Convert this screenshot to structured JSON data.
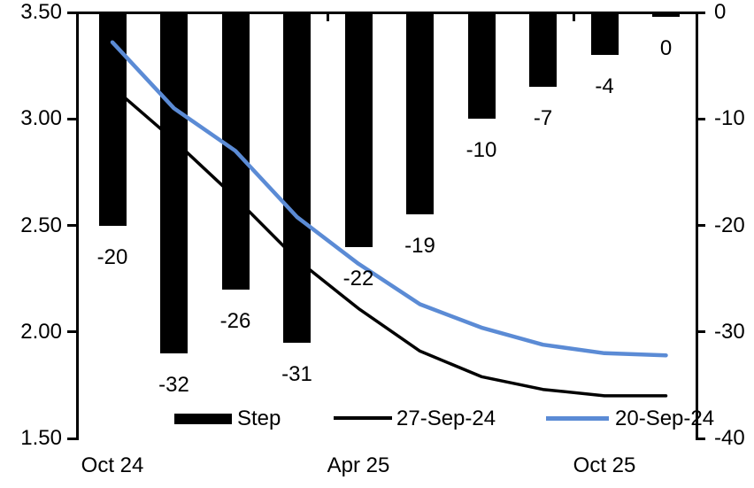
{
  "chart_data": {
    "type": "bar+line",
    "title": "",
    "n_categories": 10,
    "left_axis": {
      "min": 1.5,
      "max": 3.5,
      "tick_labels": [
        "3.50",
        "3.00",
        "2.50",
        "2.00",
        "1.50"
      ]
    },
    "right_axis": {
      "min": -40,
      "max": 0,
      "tick_labels": [
        "0",
        "-10",
        "-20",
        "-30",
        "-40"
      ]
    },
    "x_axis": {
      "labels": [
        {
          "text": "Oct 24",
          "category_index": 0
        },
        {
          "text": "Apr 25",
          "category_index": 4
        },
        {
          "text": "Oct 25",
          "category_index": 8
        }
      ],
      "boundary_ticks_before_category": [
        4,
        8
      ]
    },
    "bar_series": {
      "name": "Step",
      "axis": "right",
      "color": "#000000",
      "values": [
        -20,
        -32,
        -26,
        -31,
        -22,
        -19,
        -10,
        -7,
        -4,
        0
      ],
      "data_labels": [
        "-20",
        "-32",
        "-26",
        "-31",
        "-22",
        "-19",
        "-10",
        "-7",
        "-4",
        "0"
      ]
    },
    "line_series": [
      {
        "name": "27-Sep-24",
        "axis": "left",
        "color": "#000000",
        "stroke_width": 3.5,
        "values": [
          3.15,
          2.9,
          2.63,
          2.34,
          2.11,
          1.91,
          1.79,
          1.73,
          1.7,
          1.7
        ]
      },
      {
        "name": "20-Sep-24",
        "axis": "left",
        "color": "#5B8BD5",
        "stroke_width": 4.5,
        "values": [
          3.36,
          3.05,
          2.85,
          2.54,
          2.32,
          2.13,
          2.02,
          1.94,
          1.9,
          1.89
        ]
      }
    ],
    "legend": {
      "position": "bottom-inside",
      "entries": [
        "Step",
        "27-Sep-24",
        "20-Sep-24"
      ]
    },
    "grid": "off",
    "background": "#FFFFFF"
  }
}
